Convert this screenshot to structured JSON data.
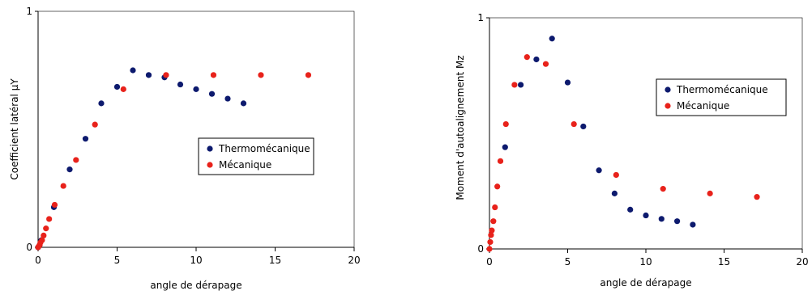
{
  "chart_data": [
    {
      "type": "scatter",
      "title": "",
      "xlabel": "angle de dérapage",
      "ylabel": "Coefficient latéral µY",
      "xlim": [
        0,
        20
      ],
      "ylim": [
        0,
        1
      ],
      "xticks": [
        "0",
        "5",
        "10",
        "15",
        "20"
      ],
      "yticks": [
        "0",
        "1"
      ],
      "grid": false,
      "legend_position": "right-middle",
      "series": [
        {
          "name": "Thermomécanique",
          "color": "#0d1a6e",
          "points": [
            [
              0,
              0.0
            ],
            [
              0.1,
              0.01
            ],
            [
              0.2,
              0.03
            ],
            [
              1,
              0.17
            ],
            [
              2,
              0.33
            ],
            [
              3,
              0.46
            ],
            [
              4,
              0.61
            ],
            [
              5,
              0.68
            ],
            [
              6,
              0.75
            ],
            [
              7,
              0.73
            ],
            [
              8,
              0.72
            ],
            [
              9,
              0.69
            ],
            [
              10,
              0.67
            ],
            [
              11,
              0.65
            ],
            [
              12,
              0.63
            ],
            [
              13,
              0.61
            ]
          ]
        },
        {
          "name": "Mécanique",
          "color": "#e8221b",
          "points": [
            [
              0,
              0.0
            ],
            [
              0.05,
              0.005
            ],
            [
              0.1,
              0.01
            ],
            [
              0.15,
              0.02
            ],
            [
              0.25,
              0.03
            ],
            [
              0.35,
              0.05
            ],
            [
              0.5,
              0.08
            ],
            [
              0.7,
              0.12
            ],
            [
              1.05,
              0.18
            ],
            [
              1.6,
              0.26
            ],
            [
              2.4,
              0.37
            ],
            [
              3.6,
              0.52
            ],
            [
              5.4,
              0.67
            ],
            [
              8.1,
              0.73
            ],
            [
              11.1,
              0.73
            ],
            [
              14.1,
              0.73
            ],
            [
              17.1,
              0.73
            ]
          ]
        }
      ]
    },
    {
      "type": "scatter",
      "title": "",
      "xlabel": "angle de dérapage",
      "ylabel": "Moment d'autoalignement Mz",
      "xlim": [
        0,
        20
      ],
      "ylim": [
        0,
        1
      ],
      "xticks": [
        "0",
        "5",
        "10",
        "15",
        "20"
      ],
      "yticks": [
        "0",
        "1"
      ],
      "grid": false,
      "legend_position": "top-right",
      "series": [
        {
          "name": "Thermomécanique",
          "color": "#0d1a6e",
          "points": [
            [
              1,
              0.44
            ],
            [
              2,
              0.71
            ],
            [
              3,
              0.82
            ],
            [
              4,
              0.91
            ],
            [
              5,
              0.72
            ],
            [
              6,
              0.53
            ],
            [
              7,
              0.34
            ],
            [
              8,
              0.24
            ],
            [
              9,
              0.17
            ],
            [
              10,
              0.145
            ],
            [
              11,
              0.13
            ],
            [
              12,
              0.12
            ],
            [
              13,
              0.105
            ]
          ]
        },
        {
          "name": "Mécanique",
          "color": "#e8221b",
          "points": [
            [
              0.0,
              0.0
            ],
            [
              0.05,
              0.03
            ],
            [
              0.1,
              0.06
            ],
            [
              0.15,
              0.08
            ],
            [
              0.25,
              0.12
            ],
            [
              0.35,
              0.18
            ],
            [
              0.5,
              0.27
            ],
            [
              0.7,
              0.38
            ],
            [
              1.05,
              0.54
            ],
            [
              1.6,
              0.71
            ],
            [
              2.4,
              0.83
            ],
            [
              3.6,
              0.8
            ],
            [
              5.4,
              0.54
            ],
            [
              8.1,
              0.32
            ],
            [
              11.1,
              0.26
            ],
            [
              14.1,
              0.24
            ],
            [
              17.1,
              0.225
            ]
          ]
        }
      ]
    }
  ]
}
